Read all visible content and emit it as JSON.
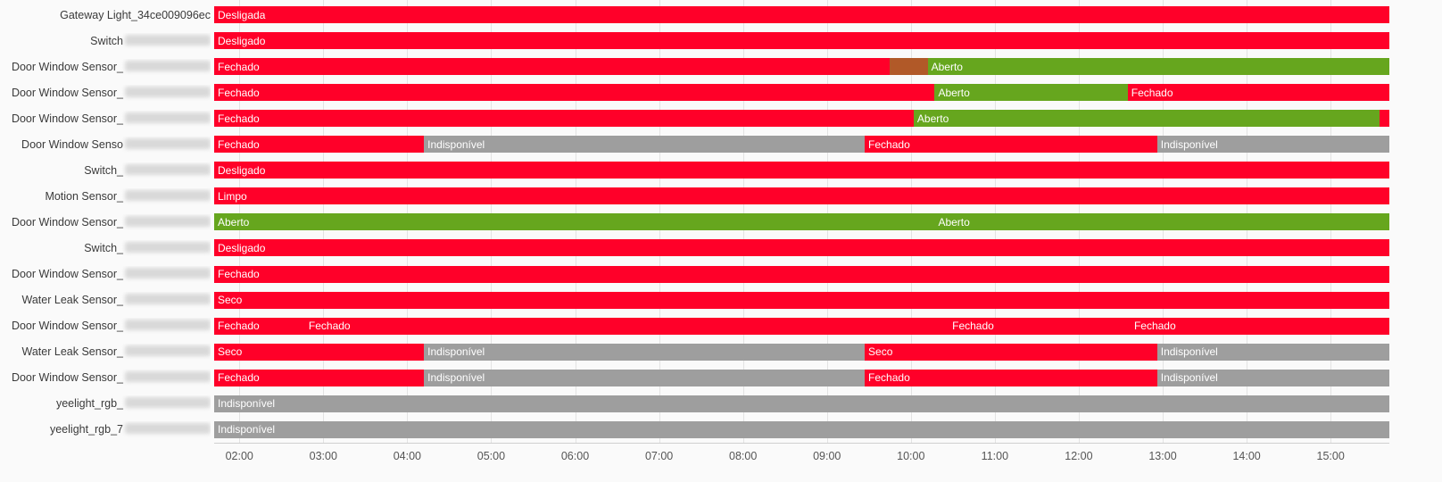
{
  "chart_data": {
    "type": "timeline",
    "x_axis": {
      "domain_start": "01:42",
      "domain_end": "15:42",
      "ticks": [
        "02:00",
        "03:00",
        "04:00",
        "05:00",
        "06:00",
        "07:00",
        "08:00",
        "09:00",
        "10:00",
        "11:00",
        "12:00",
        "13:00",
        "14:00",
        "15:00"
      ],
      "grid": true
    },
    "colors": {
      "red": "#ff0029",
      "green": "#66a61e",
      "gray": "#9e9e9e",
      "brown": "#b15928"
    },
    "rows": [
      {
        "label": "Gateway Light_34ce009096ec",
        "blurred_suffix": false,
        "segments": [
          {
            "start": "01:42",
            "end": "15:42",
            "state": "Desligada",
            "color": "red"
          }
        ]
      },
      {
        "label": "Switch",
        "blurred_suffix": true,
        "segments": [
          {
            "start": "01:42",
            "end": "15:42",
            "state": "Desligado",
            "color": "red"
          }
        ]
      },
      {
        "label": "Door Window Sensor_",
        "blurred_suffix": true,
        "segments": [
          {
            "start": "01:42",
            "end": "09:45",
            "state": "Fechado",
            "color": "red"
          },
          {
            "start": "09:45",
            "end": "10:12",
            "state": "",
            "color": "brown"
          },
          {
            "start": "10:12",
            "end": "15:42",
            "state": "Aberto",
            "color": "green"
          }
        ]
      },
      {
        "label": "Door Window Sensor_",
        "blurred_suffix": true,
        "segments": [
          {
            "start": "01:42",
            "end": "10:17",
            "state": "Fechado",
            "color": "red"
          },
          {
            "start": "10:17",
            "end": "12:35",
            "state": "Aberto",
            "color": "green"
          },
          {
            "start": "12:35",
            "end": "15:42",
            "state": "Fechado",
            "color": "red"
          }
        ]
      },
      {
        "label": "Door Window Sensor_",
        "blurred_suffix": true,
        "segments": [
          {
            "start": "01:42",
            "end": "10:02",
            "state": "Fechado",
            "color": "red"
          },
          {
            "start": "10:02",
            "end": "15:35",
            "state": "Aberto",
            "color": "green"
          },
          {
            "start": "15:35",
            "end": "15:42",
            "state": "",
            "color": "red"
          }
        ]
      },
      {
        "label": "Door Window Senso",
        "blurred_suffix": true,
        "segments": [
          {
            "start": "01:42",
            "end": "04:12",
            "state": "Fechado",
            "color": "red"
          },
          {
            "start": "04:12",
            "end": "09:27",
            "state": "Indisponível",
            "color": "gray"
          },
          {
            "start": "09:27",
            "end": "12:56",
            "state": "Fechado",
            "color": "red"
          },
          {
            "start": "12:56",
            "end": "15:42",
            "state": "Indisponível",
            "color": "gray"
          }
        ]
      },
      {
        "label": "Switch_",
        "blurred_suffix": true,
        "segments": [
          {
            "start": "01:42",
            "end": "15:42",
            "state": "Desligado",
            "color": "red"
          }
        ]
      },
      {
        "label": "Motion Sensor_",
        "blurred_suffix": true,
        "segments": [
          {
            "start": "01:42",
            "end": "15:42",
            "state": "Limpo",
            "color": "red"
          }
        ]
      },
      {
        "label": "Door Window Sensor_",
        "blurred_suffix": true,
        "segments": [
          {
            "start": "01:42",
            "end": "10:17",
            "state": "Aberto",
            "color": "green"
          },
          {
            "start": "10:17",
            "end": "15:42",
            "state": "Aberto",
            "color": "green"
          }
        ]
      },
      {
        "label": "Switch_",
        "blurred_suffix": true,
        "segments": [
          {
            "start": "01:42",
            "end": "15:42",
            "state": "Desligado",
            "color": "red"
          }
        ]
      },
      {
        "label": "Door Window Sensor_",
        "blurred_suffix": true,
        "segments": [
          {
            "start": "01:42",
            "end": "15:42",
            "state": "Fechado",
            "color": "red"
          }
        ]
      },
      {
        "label": "Water Leak Sensor_",
        "blurred_suffix": true,
        "segments": [
          {
            "start": "01:42",
            "end": "15:42",
            "state": "Seco",
            "color": "red"
          }
        ]
      },
      {
        "label": "Door Window Sensor_",
        "blurred_suffix": true,
        "segments": [
          {
            "start": "01:42",
            "end": "02:47",
            "state": "Fechado",
            "color": "red"
          },
          {
            "start": "02:47",
            "end": "10:27",
            "state": "Fechado",
            "color": "red"
          },
          {
            "start": "10:27",
            "end": "12:22",
            "state": "Fechado",
            "color": "red"
          },
          {
            "start": "12:22",
            "end": "12:37",
            "state": "",
            "color": "red"
          },
          {
            "start": "12:37",
            "end": "15:32",
            "state": "Fechado",
            "color": "red"
          },
          {
            "start": "15:32",
            "end": "15:42",
            "state": "",
            "color": "red"
          }
        ]
      },
      {
        "label": "Water Leak Sensor_",
        "blurred_suffix": true,
        "segments": [
          {
            "start": "01:42",
            "end": "04:12",
            "state": "Seco",
            "color": "red"
          },
          {
            "start": "04:12",
            "end": "09:27",
            "state": "Indisponível",
            "color": "gray"
          },
          {
            "start": "09:27",
            "end": "12:56",
            "state": "Seco",
            "color": "red"
          },
          {
            "start": "12:56",
            "end": "15:42",
            "state": "Indisponível",
            "color": "gray"
          }
        ]
      },
      {
        "label": "Door Window Sensor_",
        "blurred_suffix": true,
        "segments": [
          {
            "start": "01:42",
            "end": "04:12",
            "state": "Fechado",
            "color": "red"
          },
          {
            "start": "04:12",
            "end": "09:27",
            "state": "Indisponível",
            "color": "gray"
          },
          {
            "start": "09:27",
            "end": "12:56",
            "state": "Fechado",
            "color": "red"
          },
          {
            "start": "12:56",
            "end": "15:42",
            "state": "Indisponível",
            "color": "gray"
          }
        ]
      },
      {
        "label": "yeelight_rgb_",
        "blurred_suffix": true,
        "segments": [
          {
            "start": "01:42",
            "end": "15:42",
            "state": "Indisponível",
            "color": "gray"
          }
        ]
      },
      {
        "label": "yeelight_rgb_7",
        "blurred_suffix": true,
        "segments": [
          {
            "start": "01:42",
            "end": "15:42",
            "state": "Indisponível",
            "color": "gray"
          }
        ]
      }
    ]
  }
}
